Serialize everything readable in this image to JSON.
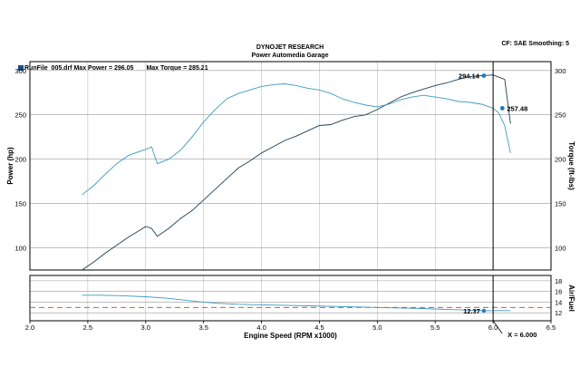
{
  "header": {
    "line1": "DYNOJET RESEARCH",
    "line2": "Power Automedia Garage",
    "correction": "CF: SAE  Smoothing: 5"
  },
  "legend": {
    "file": "RunFile_005.drf",
    "max_power_label": "Max Power = 296.05",
    "max_torque_label": "Max Torque = 285.21"
  },
  "colors": {
    "power": "#1f3d57",
    "torque": "#3d9bc1",
    "afr": "#3d9bc1",
    "target_line": "#e03030",
    "grid": "#9a9a9a",
    "marker": "#1f7ab8"
  },
  "chart_data": [
    {
      "type": "line",
      "xlabel": "Engine Speed (RPM x1000)",
      "ylabel": "Power (hp)",
      "y2label": "Torque (ft-lbs)",
      "xlim": [
        2.0,
        6.5
      ],
      "ylim": [
        75,
        310
      ],
      "y2lim": [
        75,
        310
      ],
      "xticks": [
        "2.0",
        "2.5",
        "3.0",
        "3.5",
        "4.0",
        "4.5",
        "5.0",
        "5.5",
        "6.0",
        "6.5"
      ],
      "yticks": [
        "100",
        "150",
        "200",
        "250",
        "300"
      ],
      "y2ticks": [
        "100",
        "150",
        "200",
        "250",
        "300"
      ],
      "grid": true,
      "cursor_x": 6.0,
      "series": [
        {
          "key": "power",
          "axis": "left",
          "x": [
            2.45,
            2.55,
            2.65,
            2.75,
            2.85,
            2.95,
            3.0,
            3.05,
            3.1,
            3.2,
            3.3,
            3.4,
            3.5,
            3.6,
            3.7,
            3.8,
            3.9,
            4.0,
            4.1,
            4.2,
            4.3,
            4.4,
            4.5,
            4.6,
            4.7,
            4.8,
            4.9,
            5.0,
            5.1,
            5.2,
            5.3,
            5.4,
            5.5,
            5.6,
            5.7,
            5.8,
            5.9,
            6.0,
            6.1,
            6.15
          ],
          "y": [
            75,
            84,
            94,
            103,
            112,
            120,
            124,
            122,
            113,
            122,
            133,
            142,
            154,
            166,
            178,
            190,
            198,
            207,
            214,
            221,
            226,
            232,
            238,
            239,
            244,
            248,
            250,
            256,
            263,
            270,
            275,
            279,
            283,
            286,
            290,
            293,
            294.14,
            295,
            290,
            240
          ]
        },
        {
          "key": "torque",
          "axis": "right",
          "x": [
            2.45,
            2.55,
            2.65,
            2.75,
            2.85,
            2.95,
            3.0,
            3.05,
            3.1,
            3.2,
            3.3,
            3.4,
            3.5,
            3.6,
            3.7,
            3.8,
            3.9,
            4.0,
            4.1,
            4.2,
            4.3,
            4.4,
            4.5,
            4.6,
            4.7,
            4.8,
            4.9,
            5.0,
            5.1,
            5.2,
            5.3,
            5.4,
            5.5,
            5.6,
            5.7,
            5.8,
            5.9,
            6.0,
            6.05,
            6.1,
            6.15
          ],
          "y": [
            160,
            170,
            183,
            195,
            204,
            209,
            211,
            214,
            195,
            200,
            210,
            225,
            242,
            256,
            268,
            274,
            278,
            282,
            284,
            285,
            283,
            280,
            278,
            274,
            268,
            264,
            261,
            259,
            262,
            267,
            270,
            272,
            270,
            268,
            265,
            264,
            262,
            257.48,
            252,
            238,
            207
          ]
        }
      ],
      "annotations": [
        {
          "series": "power",
          "x": 5.92,
          "y": 294.14,
          "label": "294.14"
        },
        {
          "series": "torque",
          "x": 6.08,
          "y": 257.48,
          "label": "257.48"
        }
      ]
    },
    {
      "type": "line",
      "ylabel": "Air/Fuel",
      "xlim": [
        2.0,
        6.5
      ],
      "ylim": [
        10.5,
        19
      ],
      "yticks": [
        "12",
        "14",
        "16",
        "18"
      ],
      "grid": true,
      "target_afr": 13.0,
      "cursor_label": "X = 6.000",
      "series": [
        {
          "key": "afr",
          "x": [
            2.45,
            2.6,
            2.8,
            3.0,
            3.2,
            3.4,
            3.6,
            3.8,
            4.0,
            4.2,
            4.4,
            4.6,
            4.8,
            5.0,
            5.2,
            5.4,
            5.6,
            5.8,
            5.92,
            6.0,
            6.1,
            6.15
          ],
          "y": [
            15.3,
            15.3,
            15.2,
            15.0,
            14.7,
            14.2,
            13.8,
            13.6,
            13.5,
            13.4,
            13.3,
            13.2,
            13.1,
            13.0,
            12.9,
            12.8,
            12.6,
            12.5,
            12.37,
            12.4,
            12.4,
            12.4
          ]
        }
      ],
      "annotations": [
        {
          "series": "afr",
          "x": 5.92,
          "y": 12.37,
          "label": "12.37"
        }
      ]
    }
  ]
}
